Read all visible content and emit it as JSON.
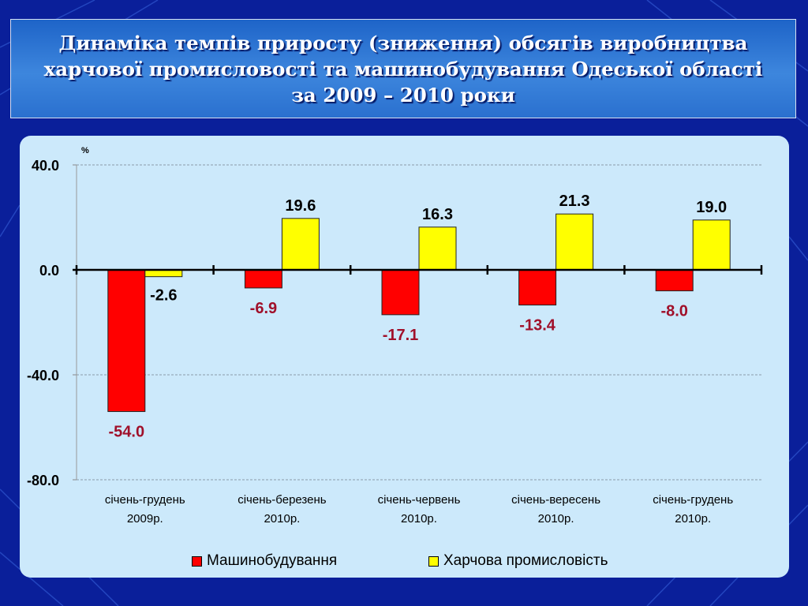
{
  "slide": {
    "title_lines": [
      "Динаміка темпів приросту (зниження) обсягів виробництва",
      "харчової промисловості та машинобудування Одеської області",
      "за 2009 – 2010  роки"
    ]
  },
  "colors": {
    "background": "#0a1f9a",
    "panel": "#cce9fb",
    "machinery": "#ff0000",
    "food": "#ffff00",
    "negative_label": "#a0102a"
  },
  "chart_data": {
    "type": "bar",
    "unit_label": "%",
    "categories": [
      [
        "січень-грудень",
        "2009р."
      ],
      [
        "січень-березень",
        "2010р."
      ],
      [
        "січень-червень",
        "2010р."
      ],
      [
        "січень-вересень",
        "2010р."
      ],
      [
        "січень-грудень",
        "2010р."
      ]
    ],
    "series": [
      {
        "name": "Машинобудування",
        "color": "#ff0000",
        "values": [
          -54.0,
          -6.9,
          -17.1,
          -13.4,
          -8.0
        ]
      },
      {
        "name": "Харчова промисловість",
        "color": "#ffff00",
        "values": [
          -2.6,
          19.6,
          16.3,
          21.3,
          19.0
        ]
      }
    ],
    "ylim": [
      -80,
      40
    ],
    "yticks": [
      40,
      0,
      -40,
      -80
    ],
    "ytick_labels": [
      "40.0",
      "0.0",
      "-40.0",
      "-80.0"
    ],
    "grid": true,
    "legend_position": "bottom"
  }
}
